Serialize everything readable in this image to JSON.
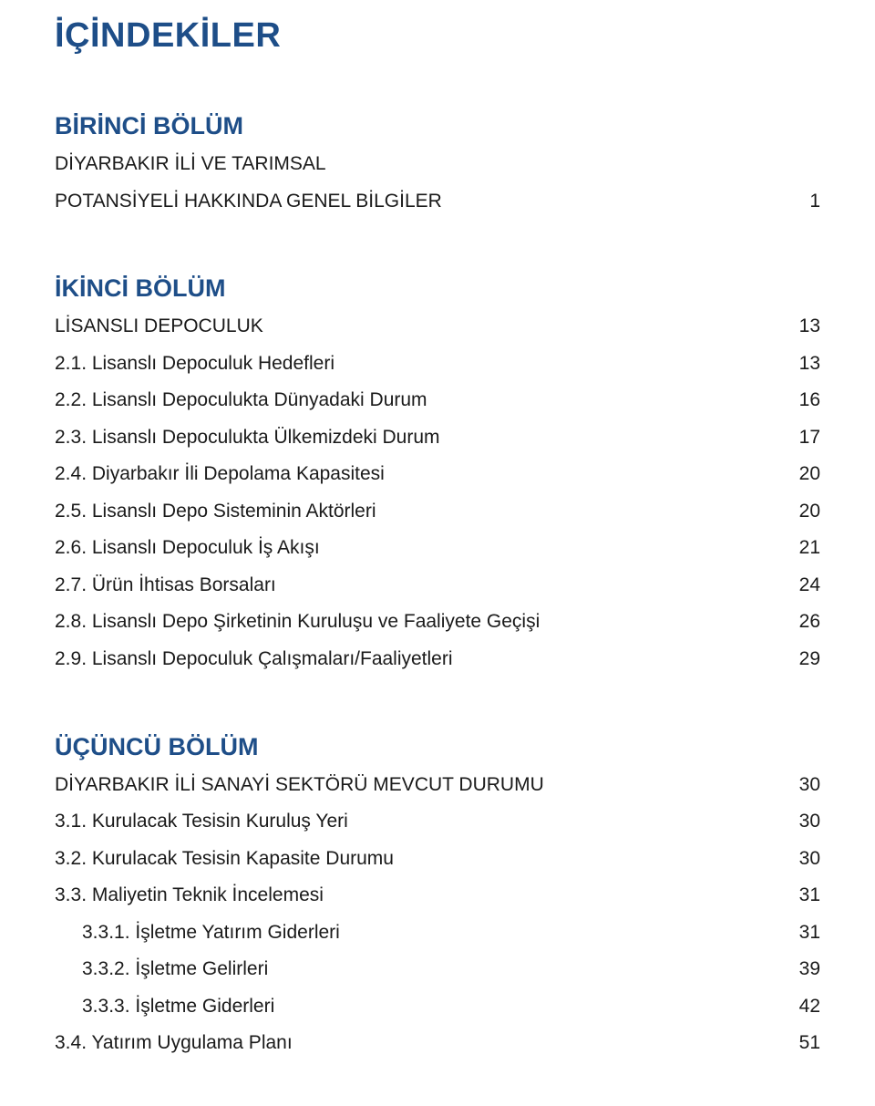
{
  "title": "İÇİNDEKİLER",
  "colors": {
    "heading": "#1e4e88",
    "body_text": "#1a1a1a",
    "background": "#ffffff"
  },
  "typography": {
    "title_fontsize_pt": 29,
    "section_fontsize_pt": 20,
    "row_fontsize_pt": 16,
    "font_family": "Segoe UI / Helvetica Neue / sans-serif"
  },
  "sections": [
    {
      "title": "BİRİNCİ BÖLÜM",
      "heading_row": {
        "label": "DİYARBAKIR İLİ VE TARIMSAL",
        "page": ""
      },
      "rows": [
        {
          "indent": 0,
          "label": "POTANSİYELİ HAKKINDA GENEL BİLGİLER",
          "page": "1"
        }
      ]
    },
    {
      "title": "İKİNCİ BÖLÜM",
      "heading_row": null,
      "rows": [
        {
          "indent": 0,
          "label": "LİSANSLI DEPOCULUK",
          "page": "13"
        },
        {
          "indent": 0,
          "label": "2.1. Lisanslı Depoculuk Hedefleri",
          "page": "13"
        },
        {
          "indent": 0,
          "label": "2.2. Lisanslı Depoculukta Dünyadaki Durum",
          "page": "16"
        },
        {
          "indent": 0,
          "label": "2.3. Lisanslı Depoculukta Ülkemizdeki Durum",
          "page": "17"
        },
        {
          "indent": 0,
          "label": "2.4. Diyarbakır İli Depolama Kapasitesi",
          "page": "20"
        },
        {
          "indent": 0,
          "label": "2.5. Lisanslı Depo Sisteminin Aktörleri",
          "page": "20"
        },
        {
          "indent": 0,
          "label": "2.6. Lisanslı Depoculuk İş Akışı",
          "page": "21"
        },
        {
          "indent": 0,
          "label": "2.7. Ürün İhtisas Borsaları",
          "page": "24"
        },
        {
          "indent": 0,
          "label": "2.8. Lisanslı Depo Şirketinin Kuruluşu ve Faaliyete Geçişi",
          "page": "26"
        },
        {
          "indent": 0,
          "label": "2.9. Lisanslı Depoculuk Çalışmaları/Faaliyetleri",
          "page": "29"
        }
      ]
    },
    {
      "title": "ÜÇÜNCÜ BÖLÜM",
      "heading_row": null,
      "rows": [
        {
          "indent": 0,
          "label": "DİYARBAKIR İLİ SANAYİ SEKTÖRÜ MEVCUT DURUMU",
          "page": "30"
        },
        {
          "indent": 0,
          "label": "3.1. Kurulacak Tesisin Kuruluş Yeri",
          "page": "30"
        },
        {
          "indent": 0,
          "label": "3.2. Kurulacak Tesisin Kapasite Durumu",
          "page": "30"
        },
        {
          "indent": 0,
          "label": "3.3. Maliyetin Teknik İncelemesi",
          "page": "31"
        },
        {
          "indent": 1,
          "label": "3.3.1. İşletme Yatırım Giderleri",
          "page": "31"
        },
        {
          "indent": 1,
          "label": "3.3.2. İşletme Gelirleri",
          "page": "39"
        },
        {
          "indent": 1,
          "label": "3.3.3. İşletme Giderleri",
          "page": "42"
        },
        {
          "indent": 0,
          "label": "3.4. Yatırım Uygulama Planı",
          "page": "51"
        }
      ]
    }
  ]
}
